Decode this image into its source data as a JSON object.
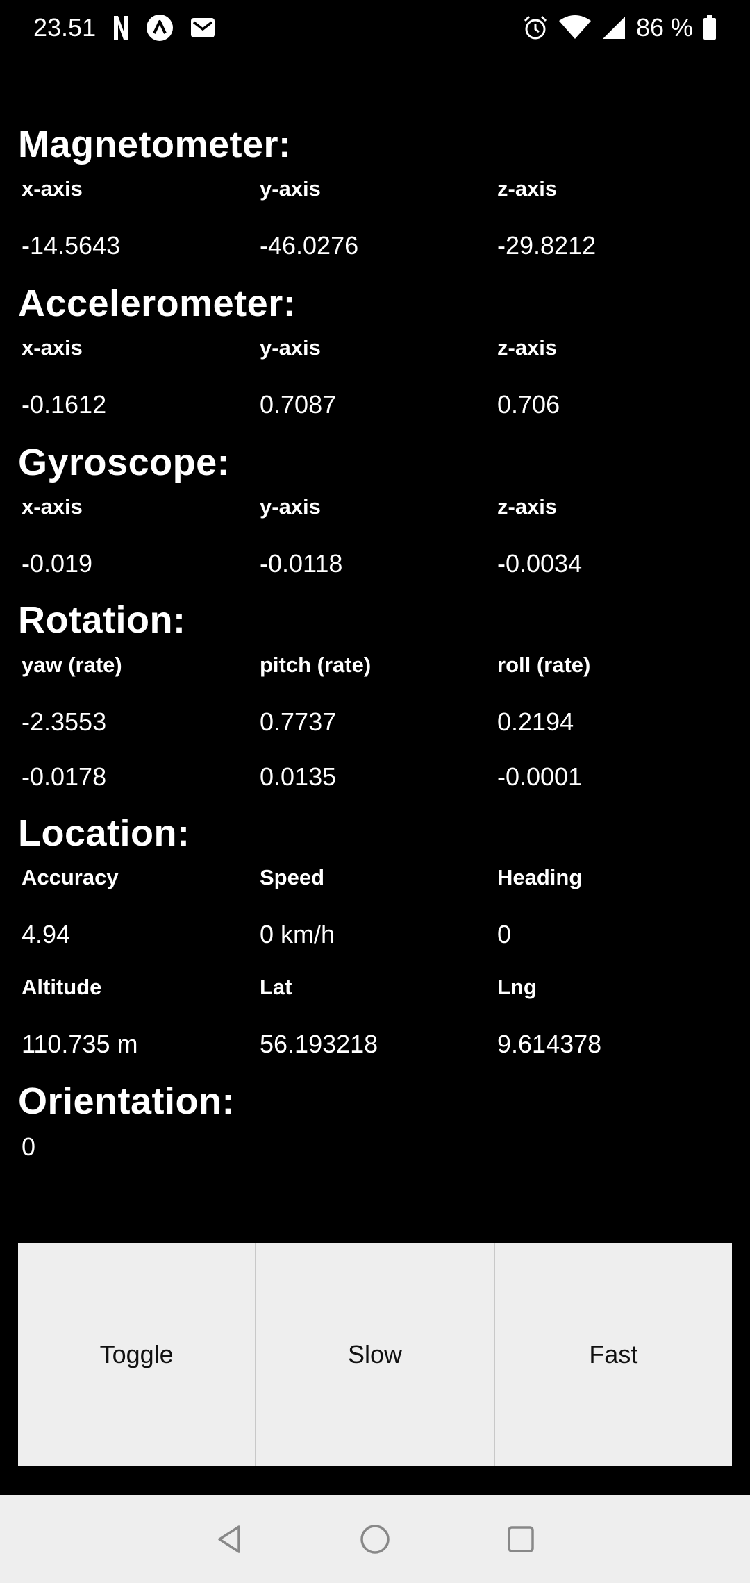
{
  "status_bar": {
    "time": "23.51",
    "battery": "86 %",
    "icons": [
      "netflix-icon",
      "app-icon",
      "gmail-icon",
      "alarm-icon",
      "wifi-icon",
      "signal-icon",
      "battery-icon"
    ]
  },
  "sections": {
    "magnetometer": {
      "title": "Magnetometer:",
      "labels": [
        "x-axis",
        "y-axis",
        "z-axis"
      ],
      "values": [
        "-14.5643",
        "-46.0276",
        "-29.8212"
      ]
    },
    "accelerometer": {
      "title": "Accelerometer:",
      "labels": [
        "x-axis",
        "y-axis",
        "z-axis"
      ],
      "values": [
        "-0.1612",
        "0.7087",
        "0.706"
      ]
    },
    "gyroscope": {
      "title": "Gyroscope:",
      "labels": [
        "x-axis",
        "y-axis",
        "z-axis"
      ],
      "values": [
        "-0.019",
        "-0.0118",
        "-0.0034"
      ]
    },
    "rotation": {
      "title": "Rotation:",
      "labels": [
        "yaw (rate)",
        "pitch (rate)",
        "roll (rate)"
      ],
      "values": [
        "-2.3553",
        "0.7737",
        "0.2194"
      ],
      "rates": [
        "-0.0178",
        "0.0135",
        "-0.0001"
      ]
    },
    "location": {
      "title": "Location:",
      "labels1": [
        "Accuracy",
        "Speed",
        "Heading"
      ],
      "values1": [
        "4.94",
        "0 km/h",
        "0"
      ],
      "labels2": [
        "Altitude",
        "Lat",
        "Lng"
      ],
      "values2": [
        "110.735 m",
        "56.193218",
        "9.614378"
      ]
    },
    "orientation": {
      "title": "Orientation:",
      "value": "0"
    }
  },
  "buttons": {
    "toggle": "Toggle",
    "slow": "Slow",
    "fast": "Fast"
  },
  "nav": [
    "back-icon",
    "home-icon",
    "recents-icon"
  ]
}
